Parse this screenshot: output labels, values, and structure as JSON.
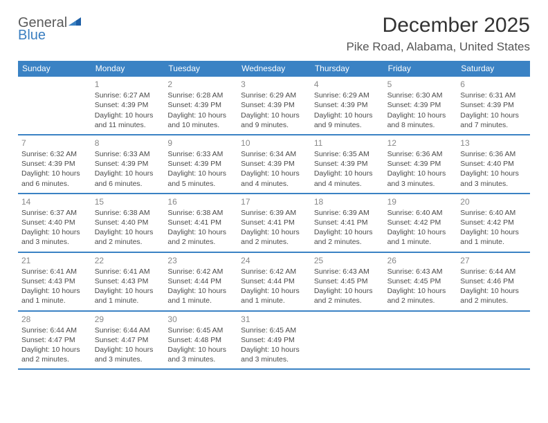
{
  "logo": {
    "line1": "General",
    "line2": "Blue"
  },
  "title": "December 2025",
  "location": "Pike Road, Alabama, United States",
  "colors": {
    "header_bg": "#3a82c4",
    "header_text": "#ffffff",
    "rule": "#3a82c4",
    "body_text": "#4a4a4a",
    "daynum": "#888888"
  },
  "dow": [
    "Sunday",
    "Monday",
    "Tuesday",
    "Wednesday",
    "Thursday",
    "Friday",
    "Saturday"
  ],
  "weeks": [
    [
      null,
      {
        "n": "1",
        "sr": "Sunrise: 6:27 AM",
        "ss": "Sunset: 4:39 PM",
        "dl": "Daylight: 10 hours and 11 minutes."
      },
      {
        "n": "2",
        "sr": "Sunrise: 6:28 AM",
        "ss": "Sunset: 4:39 PM",
        "dl": "Daylight: 10 hours and 10 minutes."
      },
      {
        "n": "3",
        "sr": "Sunrise: 6:29 AM",
        "ss": "Sunset: 4:39 PM",
        "dl": "Daylight: 10 hours and 9 minutes."
      },
      {
        "n": "4",
        "sr": "Sunrise: 6:29 AM",
        "ss": "Sunset: 4:39 PM",
        "dl": "Daylight: 10 hours and 9 minutes."
      },
      {
        "n": "5",
        "sr": "Sunrise: 6:30 AM",
        "ss": "Sunset: 4:39 PM",
        "dl": "Daylight: 10 hours and 8 minutes."
      },
      {
        "n": "6",
        "sr": "Sunrise: 6:31 AM",
        "ss": "Sunset: 4:39 PM",
        "dl": "Daylight: 10 hours and 7 minutes."
      }
    ],
    [
      {
        "n": "7",
        "sr": "Sunrise: 6:32 AM",
        "ss": "Sunset: 4:39 PM",
        "dl": "Daylight: 10 hours and 6 minutes."
      },
      {
        "n": "8",
        "sr": "Sunrise: 6:33 AM",
        "ss": "Sunset: 4:39 PM",
        "dl": "Daylight: 10 hours and 6 minutes."
      },
      {
        "n": "9",
        "sr": "Sunrise: 6:33 AM",
        "ss": "Sunset: 4:39 PM",
        "dl": "Daylight: 10 hours and 5 minutes."
      },
      {
        "n": "10",
        "sr": "Sunrise: 6:34 AM",
        "ss": "Sunset: 4:39 PM",
        "dl": "Daylight: 10 hours and 4 minutes."
      },
      {
        "n": "11",
        "sr": "Sunrise: 6:35 AM",
        "ss": "Sunset: 4:39 PM",
        "dl": "Daylight: 10 hours and 4 minutes."
      },
      {
        "n": "12",
        "sr": "Sunrise: 6:36 AM",
        "ss": "Sunset: 4:39 PM",
        "dl": "Daylight: 10 hours and 3 minutes."
      },
      {
        "n": "13",
        "sr": "Sunrise: 6:36 AM",
        "ss": "Sunset: 4:40 PM",
        "dl": "Daylight: 10 hours and 3 minutes."
      }
    ],
    [
      {
        "n": "14",
        "sr": "Sunrise: 6:37 AM",
        "ss": "Sunset: 4:40 PM",
        "dl": "Daylight: 10 hours and 3 minutes."
      },
      {
        "n": "15",
        "sr": "Sunrise: 6:38 AM",
        "ss": "Sunset: 4:40 PM",
        "dl": "Daylight: 10 hours and 2 minutes."
      },
      {
        "n": "16",
        "sr": "Sunrise: 6:38 AM",
        "ss": "Sunset: 4:41 PM",
        "dl": "Daylight: 10 hours and 2 minutes."
      },
      {
        "n": "17",
        "sr": "Sunrise: 6:39 AM",
        "ss": "Sunset: 4:41 PM",
        "dl": "Daylight: 10 hours and 2 minutes."
      },
      {
        "n": "18",
        "sr": "Sunrise: 6:39 AM",
        "ss": "Sunset: 4:41 PM",
        "dl": "Daylight: 10 hours and 2 minutes."
      },
      {
        "n": "19",
        "sr": "Sunrise: 6:40 AM",
        "ss": "Sunset: 4:42 PM",
        "dl": "Daylight: 10 hours and 1 minute."
      },
      {
        "n": "20",
        "sr": "Sunrise: 6:40 AM",
        "ss": "Sunset: 4:42 PM",
        "dl": "Daylight: 10 hours and 1 minute."
      }
    ],
    [
      {
        "n": "21",
        "sr": "Sunrise: 6:41 AM",
        "ss": "Sunset: 4:43 PM",
        "dl": "Daylight: 10 hours and 1 minute."
      },
      {
        "n": "22",
        "sr": "Sunrise: 6:41 AM",
        "ss": "Sunset: 4:43 PM",
        "dl": "Daylight: 10 hours and 1 minute."
      },
      {
        "n": "23",
        "sr": "Sunrise: 6:42 AM",
        "ss": "Sunset: 4:44 PM",
        "dl": "Daylight: 10 hours and 1 minute."
      },
      {
        "n": "24",
        "sr": "Sunrise: 6:42 AM",
        "ss": "Sunset: 4:44 PM",
        "dl": "Daylight: 10 hours and 1 minute."
      },
      {
        "n": "25",
        "sr": "Sunrise: 6:43 AM",
        "ss": "Sunset: 4:45 PM",
        "dl": "Daylight: 10 hours and 2 minutes."
      },
      {
        "n": "26",
        "sr": "Sunrise: 6:43 AM",
        "ss": "Sunset: 4:45 PM",
        "dl": "Daylight: 10 hours and 2 minutes."
      },
      {
        "n": "27",
        "sr": "Sunrise: 6:44 AM",
        "ss": "Sunset: 4:46 PM",
        "dl": "Daylight: 10 hours and 2 minutes."
      }
    ],
    [
      {
        "n": "28",
        "sr": "Sunrise: 6:44 AM",
        "ss": "Sunset: 4:47 PM",
        "dl": "Daylight: 10 hours and 2 minutes."
      },
      {
        "n": "29",
        "sr": "Sunrise: 6:44 AM",
        "ss": "Sunset: 4:47 PM",
        "dl": "Daylight: 10 hours and 3 minutes."
      },
      {
        "n": "30",
        "sr": "Sunrise: 6:45 AM",
        "ss": "Sunset: 4:48 PM",
        "dl": "Daylight: 10 hours and 3 minutes."
      },
      {
        "n": "31",
        "sr": "Sunrise: 6:45 AM",
        "ss": "Sunset: 4:49 PM",
        "dl": "Daylight: 10 hours and 3 minutes."
      },
      null,
      null,
      null
    ]
  ]
}
